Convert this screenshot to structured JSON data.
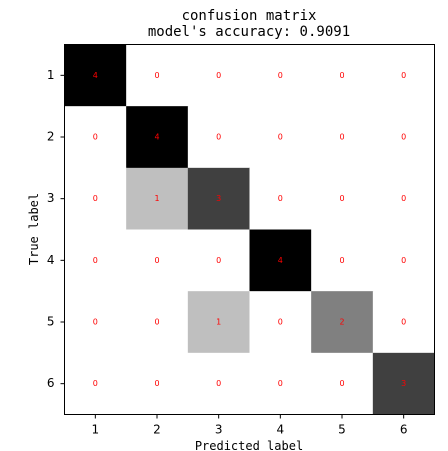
{
  "chart_data": {
    "type": "heatmap",
    "title": "confusion matrix",
    "subtitle": "model's accuracy: 0.9091",
    "xlabel": "Predicted label",
    "ylabel": "True label",
    "x_categories": [
      "1",
      "2",
      "3",
      "4",
      "5",
      "6"
    ],
    "y_categories": [
      "1",
      "2",
      "3",
      "4",
      "5",
      "6"
    ],
    "matrix": [
      [
        4,
        0,
        0,
        0,
        0,
        0
      ],
      [
        0,
        4,
        0,
        0,
        0,
        0
      ],
      [
        0,
        1,
        3,
        0,
        0,
        0
      ],
      [
        0,
        0,
        0,
        4,
        0,
        0
      ],
      [
        0,
        0,
        1,
        0,
        2,
        0
      ],
      [
        0,
        0,
        0,
        0,
        0,
        3
      ]
    ],
    "colormap": "gray_r",
    "color_range": [
      0,
      4
    ],
    "value_text_color": "#ff0000",
    "grid": false
  }
}
